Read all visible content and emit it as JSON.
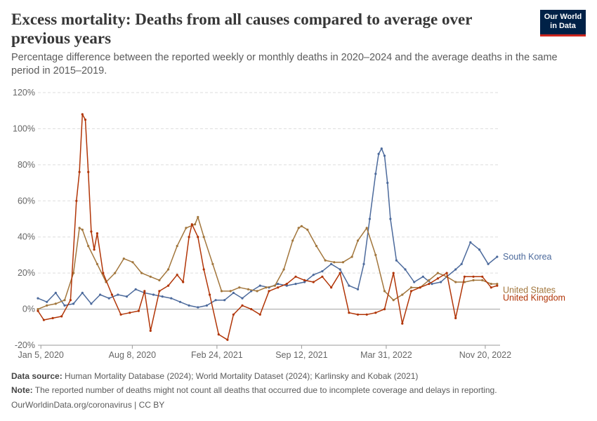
{
  "header": {
    "title": "Excess mortality: Deaths from all causes compared to average over previous years",
    "subtitle": "Percentage difference between the reported weekly or monthly deaths in 2020–2024 and the average deaths in the same period in 2015–2019.",
    "logo_line1": "Our World",
    "logo_line2": "in Data"
  },
  "footer": {
    "source_label": "Data source:",
    "source_text": "Human Mortality Database (2024); World Mortality Dataset (2024); Karlinsky and Kobak (2021)",
    "note_label": "Note:",
    "note_text": "The reported number of deaths might not count all deaths that occurred due to incomplete coverage and delays in reporting.",
    "credit": "OurWorldinData.org/coronavirus | CC BY"
  },
  "colors": {
    "south_korea": "#4c6a9c",
    "united_states": "#a2763c",
    "united_kingdom": "#b13507",
    "grid": "#dddddd",
    "zero_line": "#a1a1a1"
  },
  "chart_data": {
    "type": "line",
    "title": "Excess mortality: Deaths from all causes compared to average over previous years",
    "xlabel": "",
    "ylabel": "",
    "ylim": [
      -20,
      120
    ],
    "yticks": [
      -20,
      0,
      20,
      40,
      60,
      80,
      100,
      120
    ],
    "y_tick_labels": [
      "-20%",
      "0%",
      "20%",
      "40%",
      "60%",
      "80%",
      "100%",
      "120%"
    ],
    "xlim": [
      "2019-12-29",
      "2022-12-25"
    ],
    "x_ticks": [
      "2020-01-05",
      "2020-08-08",
      "2021-02-24",
      "2021-09-12",
      "2022-03-31",
      "2022-11-20"
    ],
    "x_tick_labels": [
      "Jan 5, 2020",
      "Aug 8, 2020",
      "Feb 24, 2021",
      "Sep 12, 2021",
      "Mar 31, 2022",
      "Nov 20, 2022"
    ],
    "grid": "horizontal dashed",
    "legend": "right, labels at line ends",
    "series": [
      {
        "name": "South Korea",
        "color": "#4c6a9c",
        "x": [
          "2019-12-29",
          "2020-01-19",
          "2020-02-09",
          "2020-03-01",
          "2020-03-22",
          "2020-04-12",
          "2020-05-03",
          "2020-05-24",
          "2020-06-14",
          "2020-07-05",
          "2020-07-26",
          "2020-08-16",
          "2020-09-06",
          "2020-09-27",
          "2020-10-18",
          "2020-11-08",
          "2020-11-29",
          "2020-12-20",
          "2021-01-10",
          "2021-01-31",
          "2021-02-21",
          "2021-03-14",
          "2021-04-04",
          "2021-04-25",
          "2021-05-16",
          "2021-06-06",
          "2021-06-27",
          "2021-07-18",
          "2021-08-08",
          "2021-08-29",
          "2021-09-19",
          "2021-10-10",
          "2021-10-31",
          "2021-11-21",
          "2021-12-12",
          "2022-01-02",
          "2022-01-23",
          "2022-02-06",
          "2022-02-20",
          "2022-03-06",
          "2022-03-13",
          "2022-03-20",
          "2022-03-27",
          "2022-04-03",
          "2022-04-10",
          "2022-04-24",
          "2022-05-15",
          "2022-06-05",
          "2022-06-26",
          "2022-07-17",
          "2022-08-07",
          "2022-08-21",
          "2022-09-11",
          "2022-09-25",
          "2022-10-16",
          "2022-11-06",
          "2022-11-27",
          "2022-12-18"
        ],
        "y": [
          6,
          4,
          9,
          2,
          3,
          9,
          3,
          8,
          6,
          8,
          7,
          11,
          9,
          8,
          7,
          6,
          4,
          2,
          1,
          2,
          5,
          5,
          9,
          6,
          10,
          13,
          12,
          14,
          13,
          14,
          15,
          19,
          21,
          25,
          22,
          13,
          11,
          25,
          50,
          75,
          86,
          89,
          85,
          70,
          50,
          27,
          22,
          15,
          18,
          14,
          15,
          18,
          22,
          25,
          37,
          33,
          25,
          29
        ]
      },
      {
        "name": "United States",
        "color": "#a2763c",
        "x": [
          "2019-12-29",
          "2020-01-19",
          "2020-02-09",
          "2020-03-01",
          "2020-03-22",
          "2020-04-05",
          "2020-04-12",
          "2020-04-26",
          "2020-05-17",
          "2020-06-07",
          "2020-06-28",
          "2020-07-19",
          "2020-08-09",
          "2020-08-30",
          "2020-09-20",
          "2020-10-11",
          "2020-11-01",
          "2020-11-22",
          "2020-12-13",
          "2021-01-03",
          "2021-01-10",
          "2021-01-24",
          "2021-02-14",
          "2021-03-07",
          "2021-03-28",
          "2021-04-18",
          "2021-05-09",
          "2021-05-30",
          "2021-06-20",
          "2021-07-11",
          "2021-08-01",
          "2021-08-22",
          "2021-09-05",
          "2021-09-12",
          "2021-09-26",
          "2021-10-17",
          "2021-11-07",
          "2021-11-28",
          "2021-12-19",
          "2022-01-09",
          "2022-01-23",
          "2022-02-13",
          "2022-03-06",
          "2022-03-27",
          "2022-04-17",
          "2022-05-08",
          "2022-05-29",
          "2022-06-19",
          "2022-07-10",
          "2022-07-31",
          "2022-08-21",
          "2022-09-11",
          "2022-10-02",
          "2022-10-23",
          "2022-11-13",
          "2022-12-04",
          "2022-12-18"
        ],
        "y": [
          0,
          2,
          3,
          5,
          20,
          45,
          44,
          35,
          25,
          15,
          20,
          28,
          26,
          20,
          18,
          16,
          22,
          35,
          45,
          47,
          51,
          40,
          25,
          10,
          10,
          12,
          11,
          10,
          12,
          13,
          22,
          38,
          45,
          46,
          44,
          35,
          27,
          26,
          26,
          29,
          38,
          45,
          30,
          10,
          5,
          8,
          12,
          12,
          16,
          20,
          18,
          15,
          15,
          16,
          16,
          14,
          14
        ]
      },
      {
        "name": "United Kingdom",
        "color": "#b13507",
        "x": [
          "2019-12-29",
          "2020-01-12",
          "2020-02-02",
          "2020-02-23",
          "2020-03-15",
          "2020-03-29",
          "2020-04-05",
          "2020-04-12",
          "2020-04-19",
          "2020-04-26",
          "2020-05-03",
          "2020-05-10",
          "2020-05-17",
          "2020-05-31",
          "2020-06-21",
          "2020-07-12",
          "2020-08-02",
          "2020-08-23",
          "2020-09-06",
          "2020-09-20",
          "2020-10-11",
          "2020-11-01",
          "2020-11-22",
          "2020-12-06",
          "2020-12-20",
          "2020-12-27",
          "2021-01-10",
          "2021-01-24",
          "2021-02-07",
          "2021-02-28",
          "2021-03-21",
          "2021-04-04",
          "2021-04-25",
          "2021-05-16",
          "2021-06-06",
          "2021-06-27",
          "2021-07-18",
          "2021-08-08",
          "2021-08-29",
          "2021-09-19",
          "2021-10-10",
          "2021-10-31",
          "2021-11-21",
          "2021-12-12",
          "2022-01-02",
          "2022-01-23",
          "2022-02-13",
          "2022-03-06",
          "2022-03-27",
          "2022-04-17",
          "2022-05-08",
          "2022-05-29",
          "2022-06-19",
          "2022-07-10",
          "2022-07-31",
          "2022-08-21",
          "2022-09-11",
          "2022-10-02",
          "2022-10-23",
          "2022-11-13",
          "2022-12-04",
          "2022-12-18"
        ],
        "y": [
          -1,
          -6,
          -5,
          -4,
          5,
          60,
          76,
          108,
          105,
          76,
          43,
          33,
          42,
          20,
          8,
          -3,
          -2,
          -1,
          10,
          -12,
          10,
          13,
          19,
          15,
          40,
          47,
          40,
          22,
          8,
          -14,
          -17,
          -3,
          2,
          0,
          -3,
          10,
          12,
          14,
          18,
          16,
          15,
          18,
          12,
          20,
          -2,
          -3,
          -3,
          -2,
          0,
          20,
          -8,
          10,
          12,
          14,
          17,
          20,
          -5,
          18,
          18,
          18,
          12,
          13
        ]
      }
    ]
  }
}
